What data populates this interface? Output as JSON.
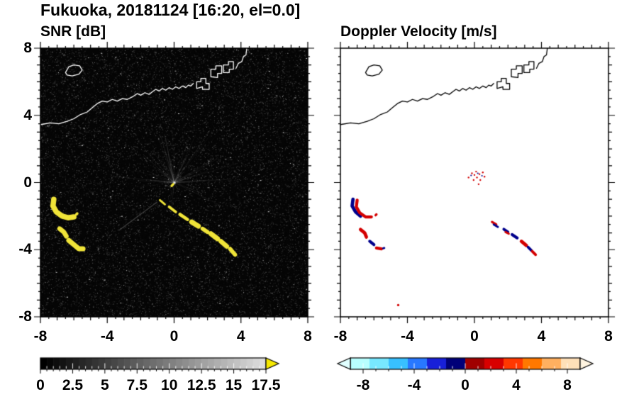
{
  "header": {
    "title": "Fukuoka, 20181124 [16:20, el=0.0]"
  },
  "chart_data": [
    {
      "type": "heatmap",
      "panel": "left",
      "title": "SNR [dB]",
      "units": "dB",
      "xlim": [
        -8,
        8
      ],
      "ylim": [
        -8,
        8
      ],
      "xticks": [
        -8,
        -4,
        0,
        4,
        8
      ],
      "yticks": [
        8,
        4,
        0,
        -4,
        -8
      ],
      "xtick_labels": [
        "-8",
        "-4",
        "0",
        "4",
        "8"
      ],
      "ytick_labels": [
        "8",
        "4",
        "0",
        "-4",
        "-8"
      ],
      "grid": false,
      "background_color": "#050505",
      "coastline_color": "#ffffff",
      "noise": {
        "speckle": true,
        "rays_from_center": true
      },
      "faint_streaks": [
        {
          "points": [
            [
              -3.3,
              -2.85
            ],
            [
              -1.0,
              -1.15
            ]
          ],
          "alpha": 0.3,
          "width": 0.05
        }
      ],
      "echoes": [
        {
          "name": "west-upper-echo",
          "value_db": 17.5,
          "color": "#f0e438",
          "width": 0.32,
          "points": [
            [
              -7.2,
              -1.0
            ],
            [
              -7.25,
              -1.4
            ],
            [
              -7.05,
              -1.75
            ],
            [
              -6.7,
              -2.0
            ],
            [
              -6.35,
              -2.1
            ],
            [
              -6.0,
              -2.05
            ]
          ]
        },
        {
          "name": "west-upper-echo-fragment",
          "value_db": 17.5,
          "color": "#f0e438",
          "width": 0.16,
          "points": [
            [
              -5.85,
              -1.9
            ],
            [
              -5.8,
              -1.85
            ]
          ]
        },
        {
          "name": "west-lower-echo-a",
          "value_db": 17.5,
          "color": "#f0e438",
          "width": 0.28,
          "points": [
            [
              -6.85,
              -2.75
            ],
            [
              -6.6,
              -2.95
            ],
            [
              -6.45,
              -3.2
            ]
          ]
        },
        {
          "name": "west-lower-echo-b",
          "value_db": 17.5,
          "color": "#f0e438",
          "width": 0.3,
          "points": [
            [
              -6.3,
              -3.45
            ],
            [
              -6.0,
              -3.7
            ],
            [
              -5.7,
              -3.95
            ],
            [
              -5.45,
              -3.95
            ]
          ]
        },
        {
          "name": "southeast-streak-1",
          "value_db": 17.5,
          "color": "#f0e438",
          "width": 0.12,
          "points": [
            [
              -0.85,
              -1.05
            ],
            [
              -0.55,
              -1.3
            ]
          ]
        },
        {
          "name": "southeast-streak-2",
          "value_db": 17.5,
          "color": "#f0e438",
          "width": 0.16,
          "points": [
            [
              -0.3,
              -1.45
            ],
            [
              0.1,
              -1.75
            ]
          ]
        },
        {
          "name": "southeast-streak-3",
          "value_db": 17.5,
          "color": "#f0e438",
          "width": 0.2,
          "points": [
            [
              0.35,
              -1.9
            ],
            [
              0.8,
              -2.2
            ]
          ]
        },
        {
          "name": "southeast-streak-4",
          "value_db": 17.5,
          "color": "#f0e438",
          "width": 0.3,
          "points": [
            [
              1.05,
              -2.35
            ],
            [
              1.45,
              -2.6
            ]
          ]
        },
        {
          "name": "southeast-streak-5",
          "value_db": 17.5,
          "color": "#f0e438",
          "width": 0.24,
          "points": [
            [
              1.7,
              -2.75
            ],
            [
              2.0,
              -2.95
            ]
          ]
        },
        {
          "name": "southeast-streak-6",
          "value_db": 17.5,
          "color": "#f0e438",
          "width": 0.3,
          "points": [
            [
              2.2,
              -3.05
            ],
            [
              2.6,
              -3.35
            ]
          ]
        },
        {
          "name": "southeast-streak-7",
          "value_db": 17.5,
          "color": "#f0e438",
          "width": 0.28,
          "points": [
            [
              2.8,
              -3.5
            ],
            [
              3.15,
              -3.8
            ]
          ]
        },
        {
          "name": "southeast-streak-8",
          "value_db": 17.5,
          "color": "#f0e438",
          "width": 0.24,
          "points": [
            [
              3.35,
              -3.95
            ],
            [
              3.65,
              -4.3
            ]
          ]
        },
        {
          "name": "radar-center-echo",
          "value_db": 17.5,
          "color": "#f0e438",
          "width": 0.14,
          "points": [
            [
              -0.15,
              -0.2
            ],
            [
              -0.05,
              -0.1
            ]
          ]
        }
      ],
      "colorbar": {
        "range": [
          0,
          17.5
        ],
        "tick_values": [
          0,
          2.5,
          5,
          7.5,
          10,
          12.5,
          15,
          17.5
        ],
        "tick_labels": [
          "0",
          "2.5",
          "5",
          "7.5",
          "10",
          "12.5",
          "15",
          "17.5"
        ],
        "minor_step": 0.5,
        "major_step": 2.5,
        "gradient_start": "#000000",
        "gradient_end": "#dcdcdc",
        "steps": 35,
        "overflow_arrow_color": "#f5e800"
      }
    },
    {
      "type": "heatmap",
      "panel": "right",
      "title": "Doppler Velocity [m/s]",
      "units": "m/s",
      "xlim": [
        -8,
        8
      ],
      "ylim": [
        -8,
        8
      ],
      "xticks": [
        -8,
        -4,
        0,
        4,
        8
      ],
      "yticks": [
        8,
        4,
        0,
        -4,
        -8
      ],
      "xtick_labels": [
        "-8",
        "-4",
        "0",
        "4",
        "8"
      ],
      "ytick_labels": [],
      "grid": false,
      "background_color": "#ffffff",
      "coastline_color": "#000000",
      "noise": {
        "speckle": false,
        "rays_from_center": false
      },
      "echoes": [
        {
          "name": "west-upper-echo-away",
          "value_ms": -7,
          "color": "#00008c",
          "width": 0.2,
          "points": [
            [
              -7.25,
              -1.0
            ],
            [
              -7.3,
              -1.4
            ],
            [
              -7.1,
              -1.75
            ],
            [
              -6.8,
              -2.0
            ]
          ]
        },
        {
          "name": "west-upper-echo-toward",
          "value_ms": 6,
          "color": "#d40000",
          "width": 0.18,
          "points": [
            [
              -7.0,
              -1.05
            ],
            [
              -7.05,
              -1.45
            ],
            [
              -6.85,
              -1.8
            ],
            [
              -6.5,
              -2.05
            ],
            [
              -6.15,
              -2.05
            ]
          ]
        },
        {
          "name": "west-upper-fragment-toward",
          "value_ms": 5,
          "color": "#d40000",
          "width": 0.14,
          "points": [
            [
              -5.9,
              -1.95
            ],
            [
              -5.85,
              -1.9
            ]
          ]
        },
        {
          "name": "west-lower-echo-toward",
          "value_ms": 6,
          "color": "#d40000",
          "width": 0.2,
          "points": [
            [
              -6.8,
              -2.8
            ],
            [
              -6.55,
              -3.0
            ],
            [
              -6.45,
              -3.25
            ]
          ]
        },
        {
          "name": "west-lower-echo-away",
          "value_ms": -6,
          "color": "#00008c",
          "width": 0.18,
          "points": [
            [
              -6.25,
              -3.5
            ],
            [
              -6.0,
              -3.7
            ]
          ]
        },
        {
          "name": "west-lower-echo-toward-2",
          "value_ms": 5,
          "color": "#d40000",
          "width": 0.18,
          "points": [
            [
              -5.85,
              -3.9
            ],
            [
              -5.55,
              -3.95
            ]
          ]
        },
        {
          "name": "west-lower-echo-away-2",
          "value_ms": -5,
          "color": "#00008c",
          "width": 0.12,
          "points": [
            [
              -5.45,
              -3.92
            ],
            [
              -5.38,
              -3.9
            ]
          ]
        },
        {
          "name": "streak-echo-toward-1",
          "value_ms": 5,
          "color": "#d40000",
          "width": 0.14,
          "points": [
            [
              1.05,
              -2.35
            ],
            [
              1.3,
              -2.5
            ]
          ]
        },
        {
          "name": "streak-echo-away-1",
          "value_ms": -5,
          "color": "#00008c",
          "width": 0.12,
          "points": [
            [
              1.15,
              -2.5
            ],
            [
              1.4,
              -2.65
            ]
          ]
        },
        {
          "name": "streak-echo-away-2",
          "value_ms": -6,
          "color": "#00008c",
          "width": 0.16,
          "points": [
            [
              1.75,
              -2.78
            ],
            [
              2.0,
              -2.95
            ]
          ]
        },
        {
          "name": "streak-echo-toward-2",
          "value_ms": 4,
          "color": "#d40000",
          "width": 0.12,
          "points": [
            [
              1.85,
              -2.95
            ],
            [
              2.05,
              -3.05
            ]
          ]
        },
        {
          "name": "streak-echo-away-3",
          "value_ms": -6,
          "color": "#00008c",
          "width": 0.18,
          "points": [
            [
              2.25,
              -3.1
            ],
            [
              2.55,
              -3.3
            ]
          ]
        },
        {
          "name": "streak-echo-toward-3",
          "value_ms": 5,
          "color": "#d40000",
          "width": 0.2,
          "points": [
            [
              2.8,
              -3.5
            ],
            [
              3.1,
              -3.75
            ]
          ]
        },
        {
          "name": "streak-echo-away-4",
          "value_ms": -5,
          "color": "#00008c",
          "width": 0.16,
          "points": [
            [
              3.2,
              -3.85
            ],
            [
              3.4,
              -4.05
            ]
          ]
        },
        {
          "name": "streak-echo-toward-4",
          "value_ms": 4,
          "color": "#d40000",
          "width": 0.16,
          "points": [
            [
              3.45,
              -4.1
            ],
            [
              3.65,
              -4.3
            ]
          ]
        },
        {
          "name": "center-speckle-toward",
          "value_ms": 3,
          "color": "#d40000",
          "dot_r": 0.05,
          "points": [
            [
              -0.35,
              0.3
            ],
            [
              -0.15,
              0.55
            ],
            [
              0.1,
              0.65
            ],
            [
              0.3,
              0.5
            ],
            [
              0.5,
              0.6
            ],
            [
              0.15,
              0.3
            ],
            [
              -0.05,
              0.15
            ],
            [
              0.35,
              0.15
            ],
            [
              0.6,
              0.35
            ],
            [
              0.0,
              0.45
            ],
            [
              0.25,
              -0.1
            ]
          ]
        },
        {
          "name": "center-speckle-away",
          "value_ms": -3,
          "color": "#00008c",
          "dot_r": 0.045,
          "points": [
            [
              0.2,
              0.55
            ],
            [
              0.45,
              0.4
            ],
            [
              -0.2,
              0.42
            ]
          ]
        },
        {
          "name": "isolated-south-echo",
          "value_ms": 4,
          "color": "#d40000",
          "dot_r": 0.07,
          "points": [
            [
              -4.55,
              -7.3
            ]
          ]
        }
      ],
      "colorbar": {
        "range": [
          -9,
          9
        ],
        "tick_values": [
          -8,
          -4,
          0,
          4,
          8
        ],
        "tick_labels": [
          "-8",
          "-4",
          "0",
          "4",
          "8"
        ],
        "minor_step": 1,
        "major_step": 4,
        "cells": [
          "#b8ffff",
          "#78e8ff",
          "#38c0ff",
          "#2878ff",
          "#1820d8",
          "#000078",
          "#a00000",
          "#d80000",
          "#ff3800",
          "#ff7800",
          "#ffb060",
          "#ffe0b8"
        ],
        "underflow_arrow_color": "#e0ffff",
        "overflow_arrow_color": "#fff4e0"
      }
    }
  ],
  "coastline": {
    "name": "Fukuoka coastline (Hakata Bay)",
    "segments": [
      [
        [
          -8.0,
          3.45
        ],
        [
          -7.4,
          3.55
        ],
        [
          -6.9,
          3.5
        ],
        [
          -6.4,
          3.65
        ],
        [
          -6.0,
          3.8
        ],
        [
          -5.6,
          4.05
        ],
        [
          -5.2,
          4.2
        ],
        [
          -4.9,
          4.45
        ],
        [
          -4.6,
          4.7
        ],
        [
          -4.3,
          4.85
        ],
        [
          -4.0,
          4.8
        ],
        [
          -3.7,
          4.95
        ],
        [
          -3.4,
          4.85
        ],
        [
          -3.1,
          5.0
        ],
        [
          -2.8,
          4.95
        ],
        [
          -2.5,
          5.1
        ],
        [
          -2.2,
          5.3
        ],
        [
          -2.0,
          5.2
        ],
        [
          -1.75,
          5.35
        ],
        [
          -1.5,
          5.25
        ],
        [
          -1.3,
          5.4
        ],
        [
          -1.1,
          5.55
        ],
        [
          -0.9,
          5.45
        ],
        [
          -0.7,
          5.6
        ],
        [
          -0.5,
          5.5
        ],
        [
          -0.3,
          5.65
        ],
        [
          -0.1,
          5.55
        ],
        [
          0.1,
          5.7
        ],
        [
          0.3,
          5.6
        ],
        [
          0.5,
          5.75
        ],
        [
          0.7,
          5.65
        ],
        [
          0.85,
          5.8
        ],
        [
          1.0,
          5.75
        ],
        [
          1.15,
          5.9
        ]
      ],
      [
        [
          -6.5,
          6.55
        ],
        [
          -6.3,
          6.9
        ],
        [
          -6.0,
          7.0
        ],
        [
          -5.65,
          6.95
        ],
        [
          -5.5,
          6.7
        ],
        [
          -5.7,
          6.45
        ],
        [
          -6.1,
          6.35
        ],
        [
          -6.4,
          6.4
        ],
        [
          -6.5,
          6.55
        ]
      ],
      [
        [
          1.35,
          5.6
        ],
        [
          1.35,
          6.0
        ],
        [
          1.6,
          6.0
        ],
        [
          1.6,
          6.2
        ],
        [
          1.9,
          6.2
        ],
        [
          1.9,
          5.9
        ],
        [
          2.1,
          5.9
        ],
        [
          2.1,
          5.55
        ],
        [
          1.7,
          5.55
        ],
        [
          1.7,
          5.7
        ],
        [
          1.35,
          5.6
        ]
      ],
      [
        [
          2.2,
          6.3
        ],
        [
          2.2,
          6.75
        ],
        [
          2.5,
          6.75
        ],
        [
          2.5,
          6.95
        ],
        [
          2.85,
          6.95
        ],
        [
          2.85,
          6.5
        ],
        [
          2.6,
          6.5
        ],
        [
          2.6,
          6.25
        ],
        [
          2.2,
          6.3
        ]
      ],
      [
        [
          2.95,
          6.55
        ],
        [
          2.95,
          7.0
        ],
        [
          3.25,
          7.0
        ],
        [
          3.25,
          7.2
        ],
        [
          3.55,
          7.2
        ],
        [
          3.55,
          6.75
        ],
        [
          3.3,
          6.75
        ],
        [
          3.3,
          6.55
        ],
        [
          2.95,
          6.55
        ]
      ],
      [
        [
          3.7,
          6.8
        ],
        [
          3.85,
          7.1
        ],
        [
          4.05,
          7.2
        ],
        [
          4.15,
          7.5
        ],
        [
          4.3,
          7.6
        ],
        [
          4.35,
          8.0
        ]
      ]
    ]
  }
}
